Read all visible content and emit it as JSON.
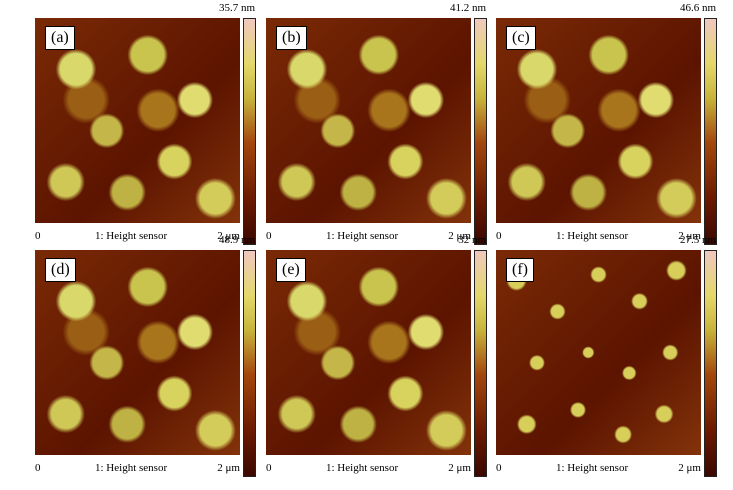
{
  "panels": [
    {
      "label": "(a)",
      "max": "35.7 nm",
      "zero": "0",
      "sensor": "1: Height sensor",
      "scale": "2 μm"
    },
    {
      "label": "(b)",
      "max": "41.2 nm",
      "zero": "0",
      "sensor": "1: Height sensor",
      "scale": "2 μm"
    },
    {
      "label": "(c)",
      "max": "46.6 nm",
      "zero": "0",
      "sensor": "1: Height sensor",
      "scale": "2 μm"
    },
    {
      "label": "(d)",
      "max": "48.9 nm",
      "zero": "0",
      "sensor": "1: Height sensor",
      "scale": "2 μm"
    },
    {
      "label": "(e)",
      "max": "32 nm",
      "zero": "0",
      "sensor": "1: Height sensor",
      "scale": "2 μm"
    },
    {
      "label": "(f)",
      "max": "27.5 nm",
      "zero": "0",
      "sensor": "1: Height sensor",
      "scale": "2 μm"
    }
  ]
}
